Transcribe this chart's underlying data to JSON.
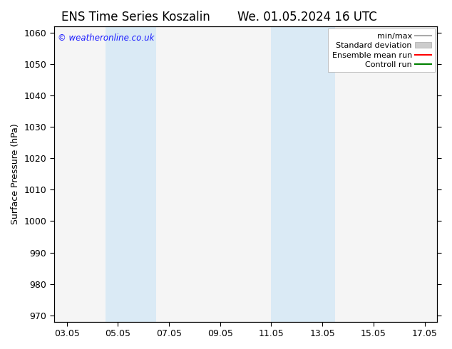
{
  "title_left": "ENS Time Series Koszalin",
  "title_right": "We. 01.05.2024 16 UTC",
  "ylabel": "Surface Pressure (hPa)",
  "ylim": [
    968,
    1062
  ],
  "yticks": [
    970,
    980,
    990,
    1000,
    1010,
    1020,
    1030,
    1040,
    1050,
    1060
  ],
  "xtick_labels": [
    "03.05",
    "05.05",
    "07.05",
    "09.05",
    "11.05",
    "13.05",
    "15.05",
    "17.05"
  ],
  "xtick_positions": [
    0,
    2,
    4,
    6,
    8,
    10,
    12,
    14
  ],
  "xlim": [
    -0.5,
    14.5
  ],
  "shaded_bands": [
    {
      "x_start": 1.5,
      "x_end": 3.5,
      "color": "#daeaf5"
    },
    {
      "x_start": 8.0,
      "x_end": 10.5,
      "color": "#daeaf5"
    }
  ],
  "watermark": "© weatheronline.co.uk",
  "watermark_color": "#1a1aff",
  "legend_entries": [
    {
      "label": "min/max",
      "color": "#aaaaaa",
      "style": "line_h"
    },
    {
      "label": "Standard deviation",
      "color": "#cccccc",
      "style": "rect"
    },
    {
      "label": "Ensemble mean run",
      "color": "#ff0000",
      "style": "line"
    },
    {
      "label": "Controll run",
      "color": "#008000",
      "style": "line"
    }
  ],
  "background_color": "#ffffff",
  "plot_bg_color": "#f5f5f5",
  "title_fontsize": 12,
  "tick_fontsize": 9,
  "label_fontsize": 9,
  "legend_fontsize": 8
}
